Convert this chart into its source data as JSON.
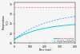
{
  "title": "",
  "xlabel": "Time (min)",
  "ylabel": "Temperature\n(°C)",
  "xlim": [
    0,
    400
  ],
  "ylim": [
    15,
    36
  ],
  "yticks": [
    15,
    20,
    25,
    30,
    35
  ],
  "xticks": [
    0,
    100,
    200,
    300,
    400
  ],
  "grid": true,
  "legend_entries": [
    "Natural convection",
    "Fans possible",
    "On Fans + possible",
    "Safety temperature"
  ],
  "line_colors": [
    "#00d4d4",
    "#4488ff",
    "#ff6666"
  ],
  "safety_temp": 33.5,
  "bg_color": "#f5f5f5"
}
